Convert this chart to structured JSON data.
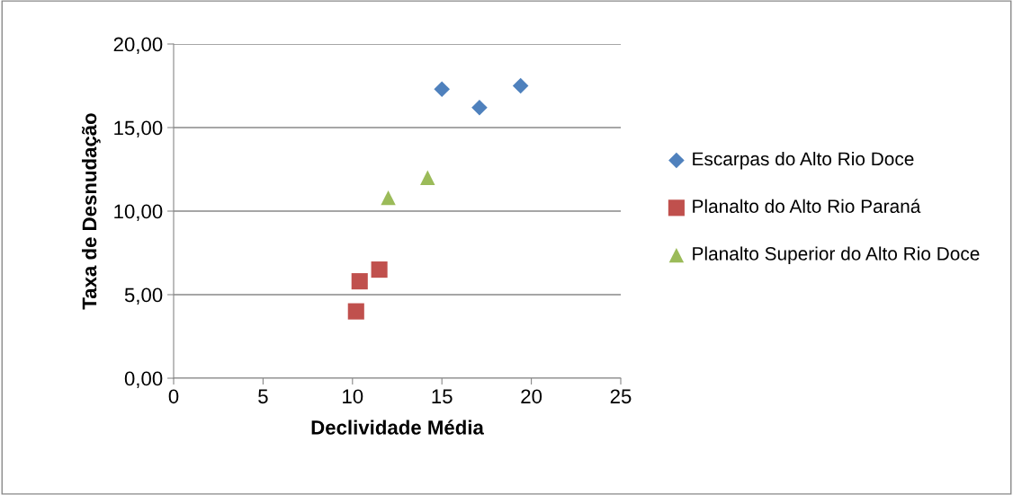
{
  "chart_data": {
    "type": "scatter",
    "xlabel": "Declividade Média",
    "ylabel": "Taxa de Desnudação",
    "series": [
      {
        "name": "Escarpas do Alto Rio Doce",
        "color": "#4f81bd",
        "marker": "diamond",
        "x": [
          15.0,
          17.1,
          19.4
        ],
        "values": [
          17.3,
          16.2,
          17.5
        ]
      },
      {
        "name": "Planalto do Alto Rio Paraná",
        "color": "#c0504d",
        "marker": "square",
        "x": [
          10.2,
          10.4,
          11.5
        ],
        "values": [
          4.0,
          5.8,
          6.5
        ]
      },
      {
        "name": "Planalto Superior do Alto Rio Doce",
        "color": "#9bbb59",
        "marker": "triangle",
        "x": [
          12.0,
          14.2
        ],
        "values": [
          10.8,
          12.0
        ]
      }
    ],
    "xlim": [
      0,
      25
    ],
    "xticks": [
      0,
      5,
      10,
      15,
      20,
      25
    ],
    "ylim": [
      0,
      20
    ],
    "yticks": [
      {
        "value": 0,
        "label": "0,00"
      },
      {
        "value": 5,
        "label": "5,00"
      },
      {
        "value": 10,
        "label": "10,00"
      },
      {
        "value": 15,
        "label": "15,00"
      },
      {
        "value": 20,
        "label": "20,00"
      }
    ],
    "grid": "y",
    "legend": "right"
  }
}
